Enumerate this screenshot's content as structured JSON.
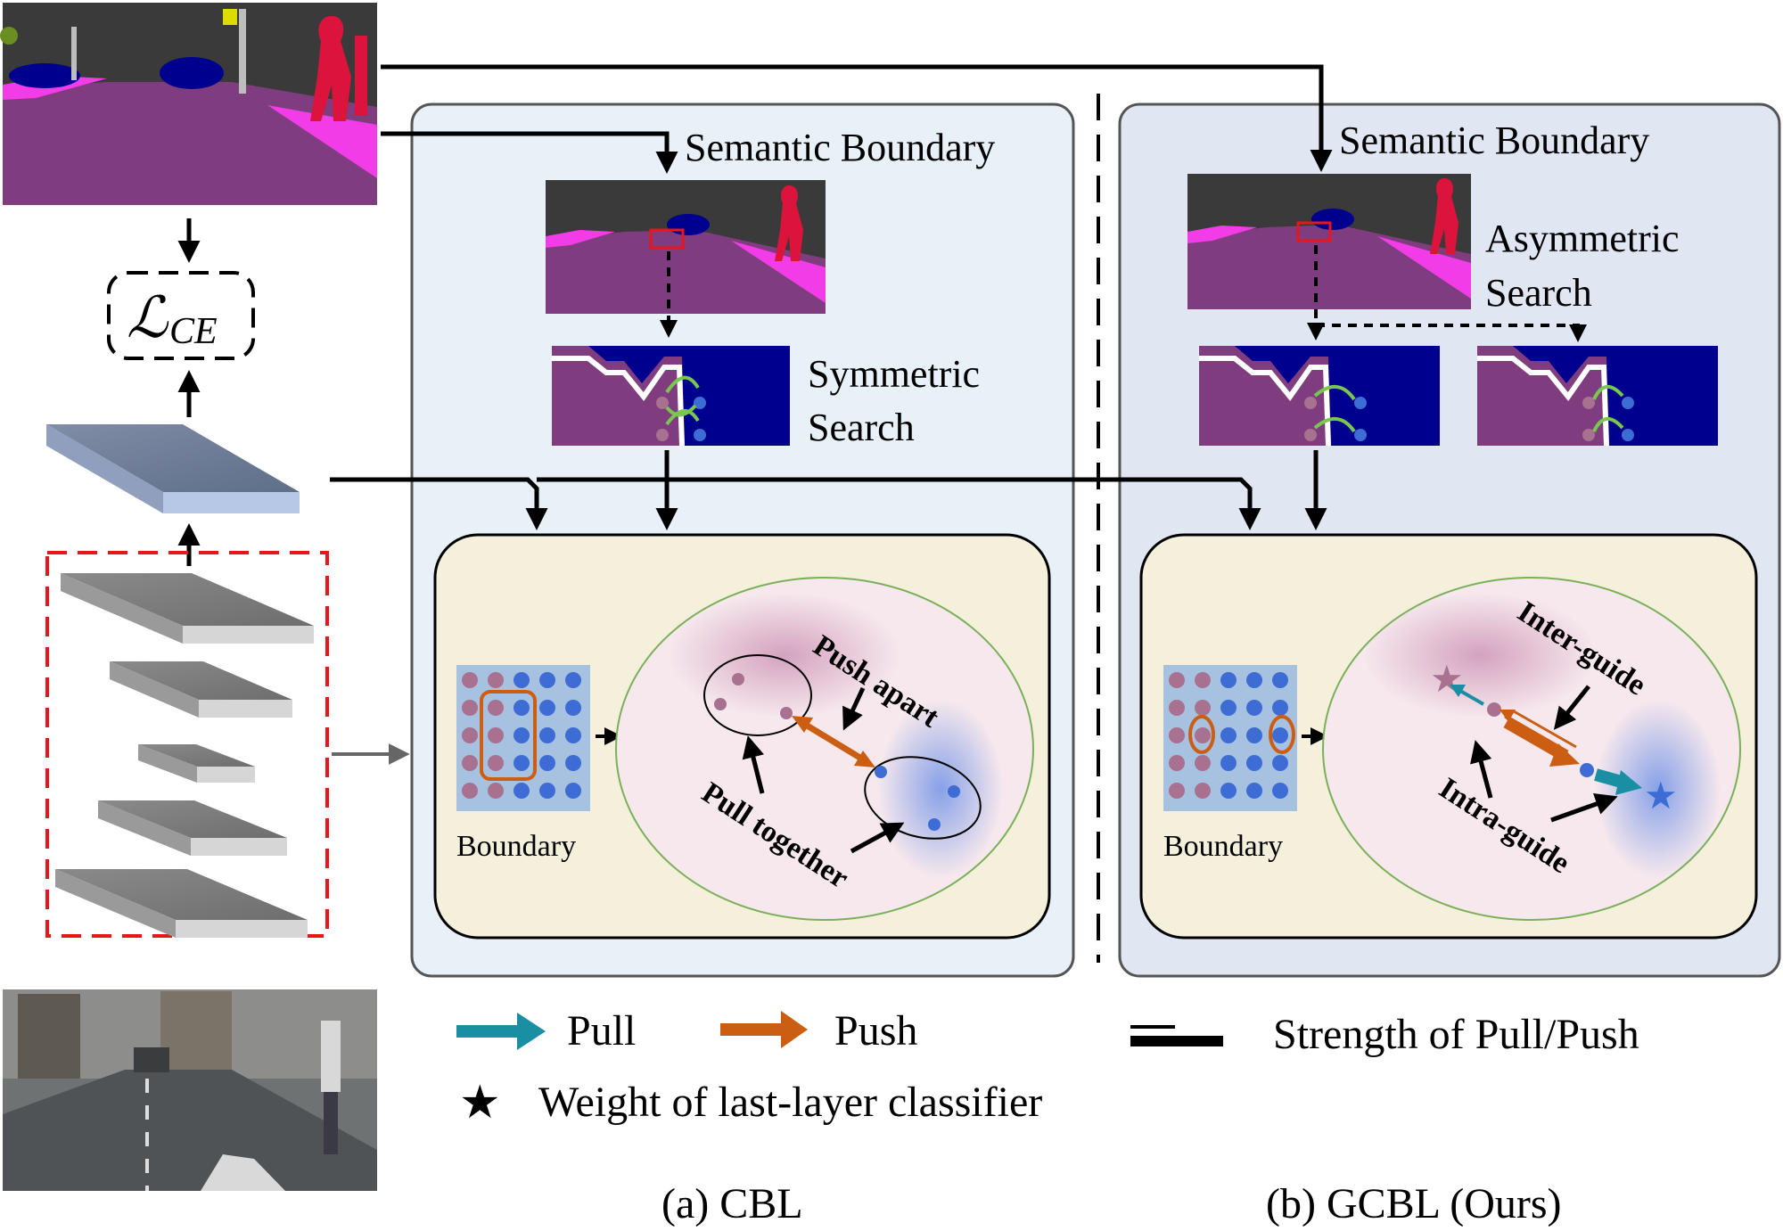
{
  "colors": {
    "road": "#7f3c7e",
    "sidewalk": "#f23ce8",
    "car": "#00008e",
    "person": "#dc143c",
    "sky_dark": "#3a3a3a",
    "panel_a": "#e8f0f8",
    "panel_b": "#e1e6f3",
    "feature_space": "#f5f0db",
    "pull": "#1a8fa3",
    "push": "#cc5e14",
    "red_dash": "#e8161b"
  },
  "left": {
    "loss_label": "ℒ",
    "loss_subscript": "CE"
  },
  "panel_a": {
    "semantic_boundary": "Semantic Boundary",
    "search_line1": "Symmetric",
    "search_line2": "Search",
    "boundary_label": "Boundary",
    "push_label": "Push apart",
    "pull_label": "Pull together",
    "caption": "(a) CBL"
  },
  "panel_b": {
    "semantic_boundary": "Semantic Boundary",
    "search_line1": "Asymmetric",
    "search_line2": "Search",
    "boundary_label": "Boundary",
    "inter_label": "Inter-guide",
    "intra_label": "Intra-guide",
    "caption": "(b) GCBL (Ours)"
  },
  "legend": {
    "pull": "Pull",
    "push": "Push",
    "strength": "Strength of Pull/Push",
    "weight": "Weight of last-layer classifier"
  },
  "icons": [
    "star-icon",
    "pull-arrow-icon",
    "push-arrow-icon"
  ]
}
